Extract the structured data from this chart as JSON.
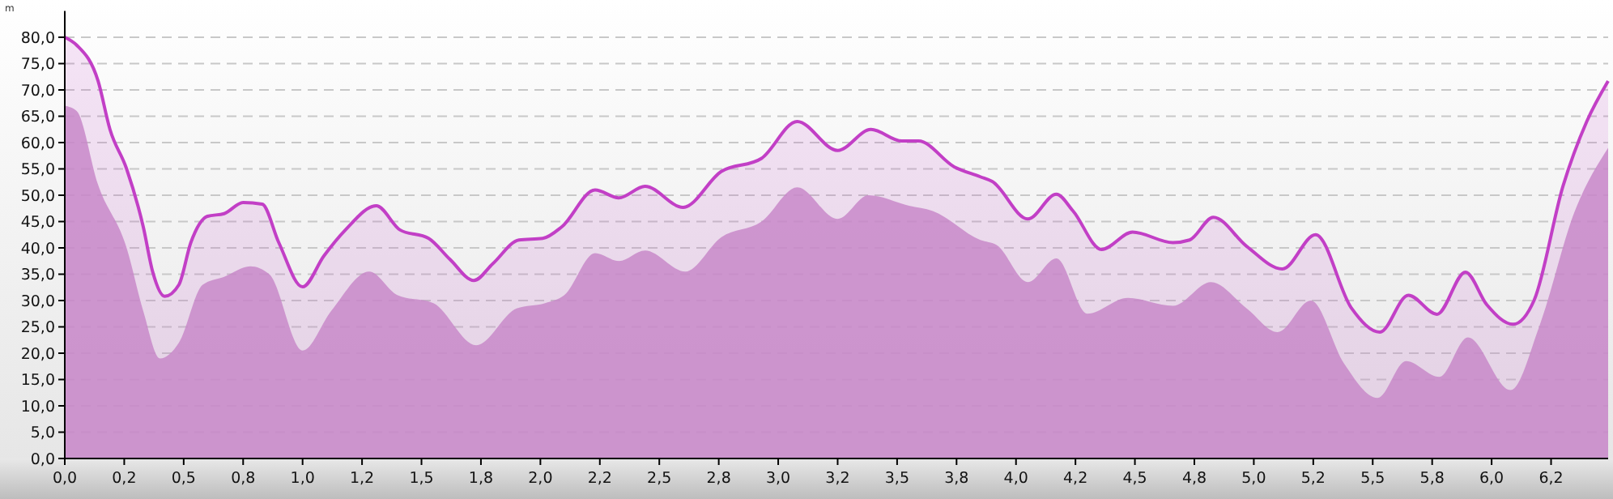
{
  "chart_data": {
    "type": "area",
    "ylabel": "m",
    "xlim": [
      0,
      6.49
    ],
    "ylim": [
      0,
      85
    ],
    "xticks": [
      {
        "value": 0,
        "label": "0,0"
      },
      {
        "value": 0.25,
        "label": "0,2"
      },
      {
        "value": 0.5,
        "label": "0,5"
      },
      {
        "value": 0.75,
        "label": "0,8"
      },
      {
        "value": 1,
        "label": "1,0"
      },
      {
        "value": 1.25,
        "label": "1,2"
      },
      {
        "value": 1.5,
        "label": "1,5"
      },
      {
        "value": 1.75,
        "label": "1,8"
      },
      {
        "value": 2,
        "label": "2,0"
      },
      {
        "value": 2.25,
        "label": "2,2"
      },
      {
        "value": 2.5,
        "label": "2,5"
      },
      {
        "value": 2.75,
        "label": "2,8"
      },
      {
        "value": 3,
        "label": "3,0"
      },
      {
        "value": 3.25,
        "label": "3,2"
      },
      {
        "value": 3.5,
        "label": "3,5"
      },
      {
        "value": 3.75,
        "label": "3,8"
      },
      {
        "value": 4,
        "label": "4,0"
      },
      {
        "value": 4.25,
        "label": "4,2"
      },
      {
        "value": 4.5,
        "label": "4,5"
      },
      {
        "value": 4.75,
        "label": "4,8"
      },
      {
        "value": 5,
        "label": "5,0"
      },
      {
        "value": 5.25,
        "label": "5,2"
      },
      {
        "value": 5.5,
        "label": "5,5"
      },
      {
        "value": 5.75,
        "label": "5,8"
      },
      {
        "value": 6,
        "label": "6,0"
      },
      {
        "value": 6.25,
        "label": "6,2"
      }
    ],
    "yticks": [
      {
        "value": 0,
        "label": "0,0"
      },
      {
        "value": 5,
        "label": "5,0"
      },
      {
        "value": 10,
        "label": "10,0"
      },
      {
        "value": 15,
        "label": "15,0"
      },
      {
        "value": 20,
        "label": "20,0"
      },
      {
        "value": 25,
        "label": "25,0"
      },
      {
        "value": 30,
        "label": "30,0"
      },
      {
        "value": 35,
        "label": "35,0"
      },
      {
        "value": 40,
        "label": "40,0"
      },
      {
        "value": 45,
        "label": "45,0"
      },
      {
        "value": 50,
        "label": "50,0"
      },
      {
        "value": 55,
        "label": "55,0"
      },
      {
        "value": 60,
        "label": "60,0"
      },
      {
        "value": 65,
        "label": "65,0"
      },
      {
        "value": 70,
        "label": "70,0"
      },
      {
        "value": 75,
        "label": "75,0"
      },
      {
        "value": 80,
        "label": "80,0"
      }
    ],
    "grid": "y",
    "marker": "none",
    "line_style": "solid",
    "series": [
      {
        "color": "#c23fc6",
        "x": [
          0,
          0.05,
          0.14,
          0.19,
          0.26,
          0.33,
          0.37,
          0.42,
          0.48,
          0.53,
          0.6,
          0.67,
          0.75,
          0.83,
          0.9,
          1,
          1.09,
          1.18,
          1.31,
          1.41,
          1.53,
          1.62,
          1.72,
          1.8,
          1.91,
          2.01,
          2.09,
          2.23,
          2.33,
          2.44,
          2.6,
          2.76,
          2.93,
          3.08,
          3.25,
          3.39,
          3.52,
          3.59,
          3.74,
          3.85,
          3.9,
          4.05,
          4.17,
          4.24,
          4.36,
          4.49,
          4.66,
          4.73,
          4.83,
          4.97,
          5.12,
          5.26,
          5.41,
          5.53,
          5.65,
          5.77,
          5.89,
          5.98,
          6.09,
          6.18,
          6.3,
          6.4,
          6.49
        ],
        "values": [
          80,
          78.5,
          71.7,
          62.5,
          55,
          44,
          35.4,
          30.8,
          33,
          41,
          46,
          46.5,
          48.6,
          48.3,
          41,
          32.6,
          38.5,
          43.4,
          48,
          43.4,
          41.8,
          37.8,
          33.8,
          37,
          41.5,
          41.8,
          44,
          51,
          49.5,
          51.7,
          47.7,
          54.5,
          57,
          64,
          58.5,
          62.5,
          60.3,
          60.3,
          55.4,
          53.5,
          52.6,
          45.5,
          50.2,
          47,
          39.7,
          43,
          41,
          41.5,
          45.8,
          40.3,
          36,
          42.5,
          28.6,
          24,
          31,
          27.4,
          35.4,
          29.2,
          25.5,
          30.2,
          51.7,
          64,
          71.7
        ]
      },
      {
        "color": "#c994c9",
        "x": [
          0,
          0.05,
          0.14,
          0.26,
          0.33,
          0.4,
          0.48,
          0.58,
          0.67,
          0.78,
          0.86,
          1,
          1.12,
          1.28,
          1.4,
          1.55,
          1.73,
          1.9,
          2.02,
          2.1,
          2.23,
          2.33,
          2.44,
          2.61,
          2.76,
          2.93,
          3.08,
          3.25,
          3.38,
          3.55,
          3.65,
          3.85,
          3.92,
          4.05,
          4.17,
          4.3,
          4.47,
          4.66,
          4.82,
          4.97,
          5.1,
          5.24,
          5.38,
          5.52,
          5.64,
          5.78,
          5.9,
          6.08,
          6.2,
          6.35,
          6.49
        ],
        "values": [
          67,
          66,
          52,
          40,
          28,
          19,
          22,
          33,
          34.5,
          36.5,
          35,
          20.5,
          28,
          35.5,
          31,
          29.5,
          21.5,
          28.5,
          29.5,
          31,
          39,
          37.5,
          39.5,
          35.5,
          42,
          45,
          51.5,
          45.5,
          50,
          48,
          47,
          41.5,
          40.5,
          33.5,
          38,
          27.5,
          30.5,
          29,
          33.5,
          28.5,
          24,
          30,
          18,
          11.5,
          18.5,
          15.5,
          23,
          13,
          25,
          47,
          59
        ]
      }
    ]
  }
}
